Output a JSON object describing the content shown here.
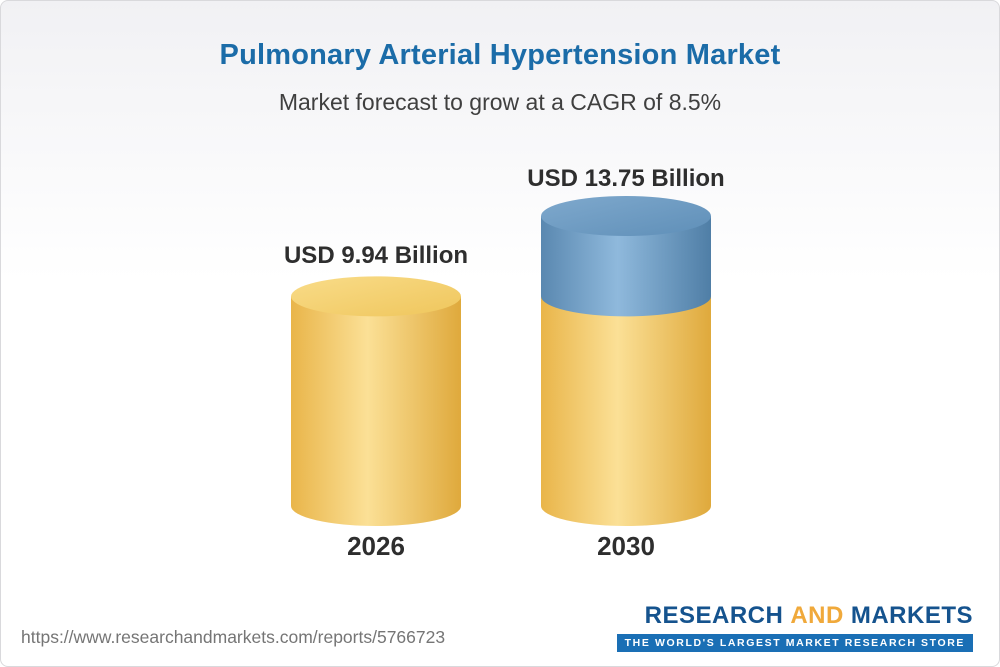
{
  "header": {
    "title": "Pulmonary Arterial Hypertension Market",
    "subtitle": "Market forecast to grow at a CAGR of 8.5%"
  },
  "chart_data": {
    "type": "bar",
    "subtype": "3d-cylinder",
    "title": "Pulmonary Arterial Hypertension Market",
    "subtitle": "Market forecast to grow at a CAGR of 8.5%",
    "categories": [
      "2026",
      "2030"
    ],
    "values": [
      9.94,
      13.75
    ],
    "value_labels": [
      "USD 9.94 Billion",
      "USD 13.75 Billion"
    ],
    "unit": "USD Billion",
    "cagr_percent": 8.5,
    "legend": false,
    "axes": false,
    "colors": {
      "cylinder_base": "#F2C45F",
      "cylinder_growth": "#6597BF",
      "title_text": "#1B6CA8",
      "label_text": "#2E2E2E"
    }
  },
  "footer": {
    "url": "https://www.researchandmarkets.com/reports/5766723",
    "logo": {
      "part1": "RESEARCH",
      "part2": "AND",
      "part3": "MARKETS",
      "tagline": "THE WORLD'S LARGEST MARKET RESEARCH STORE"
    }
  }
}
